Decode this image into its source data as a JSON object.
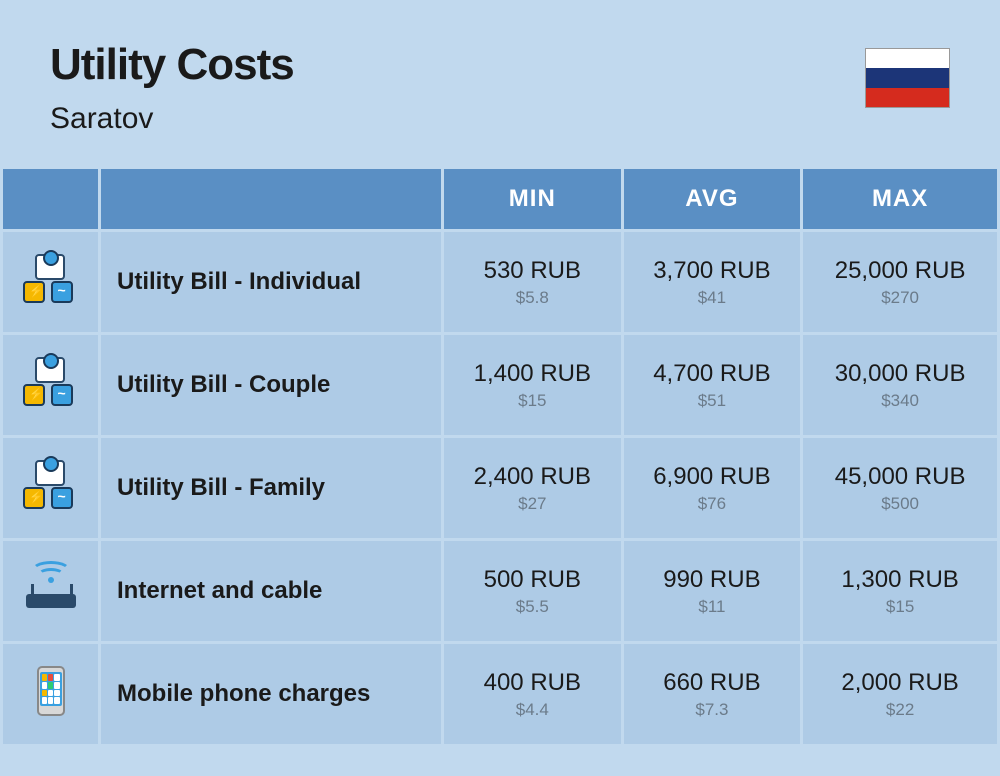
{
  "header": {
    "title": "Utility Costs",
    "subtitle": "Saratov",
    "flag_colors": [
      "#ffffff",
      "#1c3578",
      "#d52b1e"
    ]
  },
  "columns": {
    "min": "MIN",
    "avg": "AVG",
    "max": "MAX"
  },
  "rows": [
    {
      "icon": "utility",
      "label": "Utility Bill - Individual",
      "min_primary": "530 RUB",
      "min_secondary": "$5.8",
      "avg_primary": "3,700 RUB",
      "avg_secondary": "$41",
      "max_primary": "25,000 RUB",
      "max_secondary": "$270"
    },
    {
      "icon": "utility",
      "label": "Utility Bill - Couple",
      "min_primary": "1,400 RUB",
      "min_secondary": "$15",
      "avg_primary": "4,700 RUB",
      "avg_secondary": "$51",
      "max_primary": "30,000 RUB",
      "max_secondary": "$340"
    },
    {
      "icon": "utility",
      "label": "Utility Bill - Family",
      "min_primary": "2,400 RUB",
      "min_secondary": "$27",
      "avg_primary": "6,900 RUB",
      "avg_secondary": "$76",
      "max_primary": "45,000 RUB",
      "max_secondary": "$500"
    },
    {
      "icon": "router",
      "label": "Internet and cable",
      "min_primary": "500 RUB",
      "min_secondary": "$5.5",
      "avg_primary": "990 RUB",
      "avg_secondary": "$11",
      "max_primary": "1,300 RUB",
      "max_secondary": "$15"
    },
    {
      "icon": "phone",
      "label": "Mobile phone charges",
      "min_primary": "400 RUB",
      "min_secondary": "$4.4",
      "avg_primary": "660 RUB",
      "avg_secondary": "$7.3",
      "max_primary": "2,000 RUB",
      "max_secondary": "$22"
    }
  ],
  "colors": {
    "page_bg": "#c1d9ee",
    "header_bg": "#5a8fc4",
    "cell_bg": "#aecbe6",
    "text": "#1a1a1a",
    "secondary_text": "#6b7b8a"
  }
}
